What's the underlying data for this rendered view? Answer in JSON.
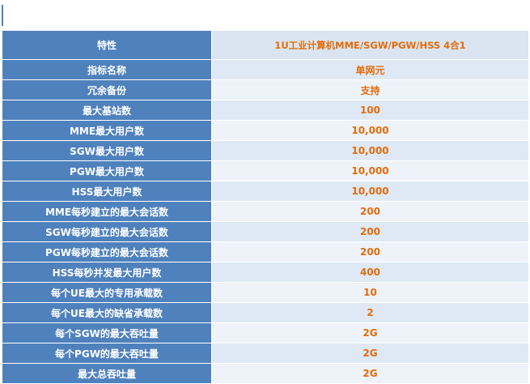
{
  "colors": {
    "label_background": "#4f81bd",
    "label_text": "#ffffff",
    "value_background": "#dfe9f6",
    "value_text": "#e46c0a",
    "accent": "#4f81bd"
  },
  "table": {
    "header": {
      "label": "特性",
      "value": "1U工业计算机MME/SGW/PGW/HSS 4合1"
    },
    "rows": [
      {
        "label": "指标名称",
        "value": "单网元"
      },
      {
        "label": "冗余备份",
        "value": "支持"
      },
      {
        "label": "最大基站数",
        "value": "100"
      },
      {
        "label": "MME最大用户数",
        "value": "10,000"
      },
      {
        "label": "SGW最大用户数",
        "value": "10,000"
      },
      {
        "label": "PGW最大用户数",
        "value": "10,000"
      },
      {
        "label": "HSS最大用户数",
        "value": "10,000"
      },
      {
        "label": "MME每秒建立的最大会话数",
        "value": "200"
      },
      {
        "label": "SGW每秒建立的最大会话数",
        "value": "200"
      },
      {
        "label": "PGW每秒建立的最大会话数",
        "value": "200"
      },
      {
        "label": "HSS每秒并发最大用户数",
        "value": "400"
      },
      {
        "label": "每个UE最大的专用承载数",
        "value": "10"
      },
      {
        "label": "每个UE最大的缺省承载数",
        "value": "2"
      },
      {
        "label": "每个SGW的最大吞吐量",
        "value": "2G"
      },
      {
        "label": "每个PGW的最大吞吐量",
        "value": "2G"
      },
      {
        "label": "最大总吞吐量",
        "value": "2G"
      }
    ]
  }
}
